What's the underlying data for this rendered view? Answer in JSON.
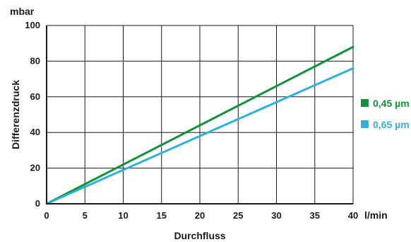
{
  "chart_data": {
    "type": "line",
    "title": "",
    "xlabel": "Durchfluss",
    "ylabel": "Differenzdruck",
    "x_unit": "l/min",
    "y_unit": "mbar",
    "xlim": [
      0,
      40
    ],
    "ylim": [
      0,
      100
    ],
    "x_ticks": [
      "0",
      "5",
      "10",
      "15",
      "20",
      "25",
      "30",
      "35",
      "40"
    ],
    "y_ticks": [
      "0",
      "20",
      "40",
      "60",
      "80",
      "100"
    ],
    "grid": true,
    "legend_position": "right",
    "series": [
      {
        "name": "0,45 µm",
        "color": "#13913b",
        "x": [
          0,
          40
        ],
        "y": [
          0,
          88
        ]
      },
      {
        "name": "0,65 µm",
        "color": "#2fb0df",
        "x": [
          0,
          40
        ],
        "y": [
          0,
          76
        ]
      }
    ]
  }
}
